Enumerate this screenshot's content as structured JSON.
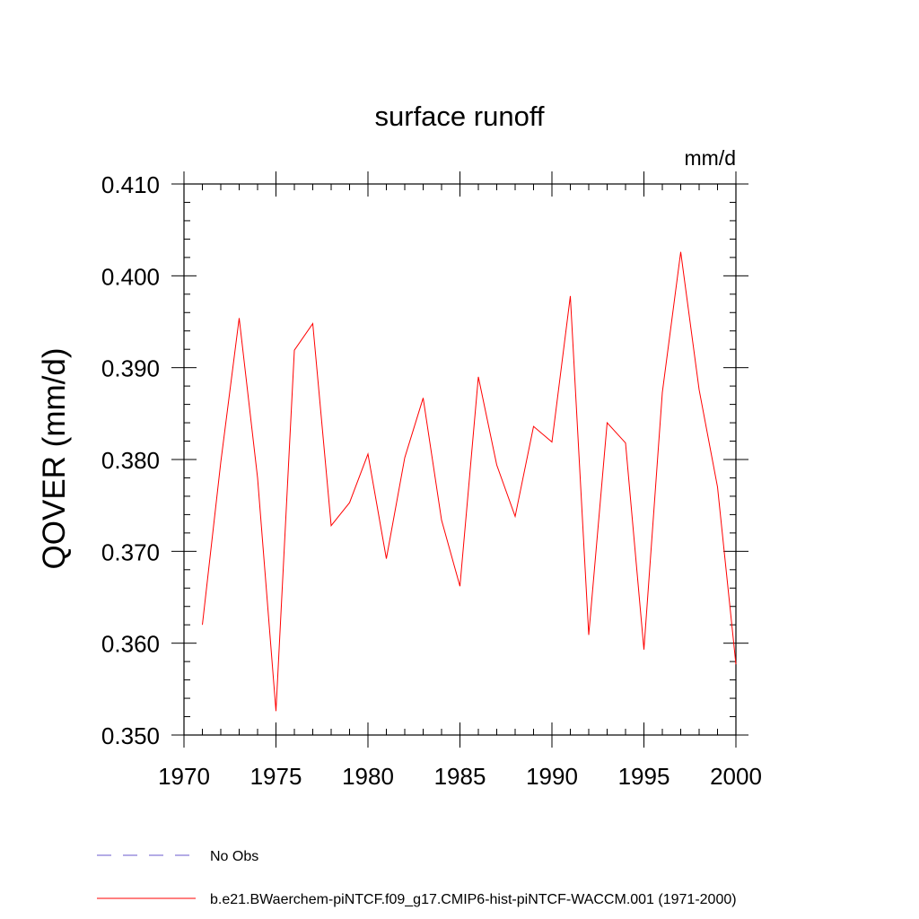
{
  "chart_data": {
    "type": "line",
    "title": "surface runoff",
    "units_label": "mm/d",
    "ylabel": "QOVER  (mm/d)",
    "xlabel": "",
    "xlim": [
      1970,
      2000
    ],
    "ylim": [
      0.35,
      0.41
    ],
    "x_ticks": [
      1970,
      1975,
      1980,
      1985,
      1990,
      1995,
      2000
    ],
    "y_ticks": [
      "0.350",
      "0.360",
      "0.370",
      "0.380",
      "0.390",
      "0.400",
      "0.410"
    ],
    "grid": false,
    "legend_placement": "bottom",
    "legend": [
      {
        "label": "No Obs",
        "color": "#6a5acd",
        "dash": true
      },
      {
        "label": "b.e21.BWaerchem-piNTCF.f09_g17.CMIP6-hist-piNTCF-WACCM.001 (1971-2000)",
        "color": "#ff0000",
        "dash": false
      }
    ],
    "series": [
      {
        "color": "#ff0000",
        "x": [
          1971,
          1972,
          1973,
          1974,
          1975,
          1976,
          1977,
          1978,
          1979,
          1980,
          1981,
          1982,
          1983,
          1984,
          1985,
          1986,
          1987,
          1988,
          1989,
          1990,
          1991,
          1992,
          1993,
          1994,
          1995,
          1996,
          1997,
          1998,
          1999,
          2000
        ],
        "values": [
          0.362,
          0.3797,
          0.3954,
          0.378,
          0.3526,
          0.3919,
          0.3948,
          0.3728,
          0.3753,
          0.3806,
          0.3692,
          0.3802,
          0.3867,
          0.3734,
          0.3662,
          0.389,
          0.3794,
          0.3738,
          0.3836,
          0.3819,
          0.3978,
          0.3609,
          0.384,
          0.3818,
          0.3593,
          0.3873,
          0.4026,
          0.3876,
          0.377,
          0.3577
        ]
      }
    ]
  }
}
